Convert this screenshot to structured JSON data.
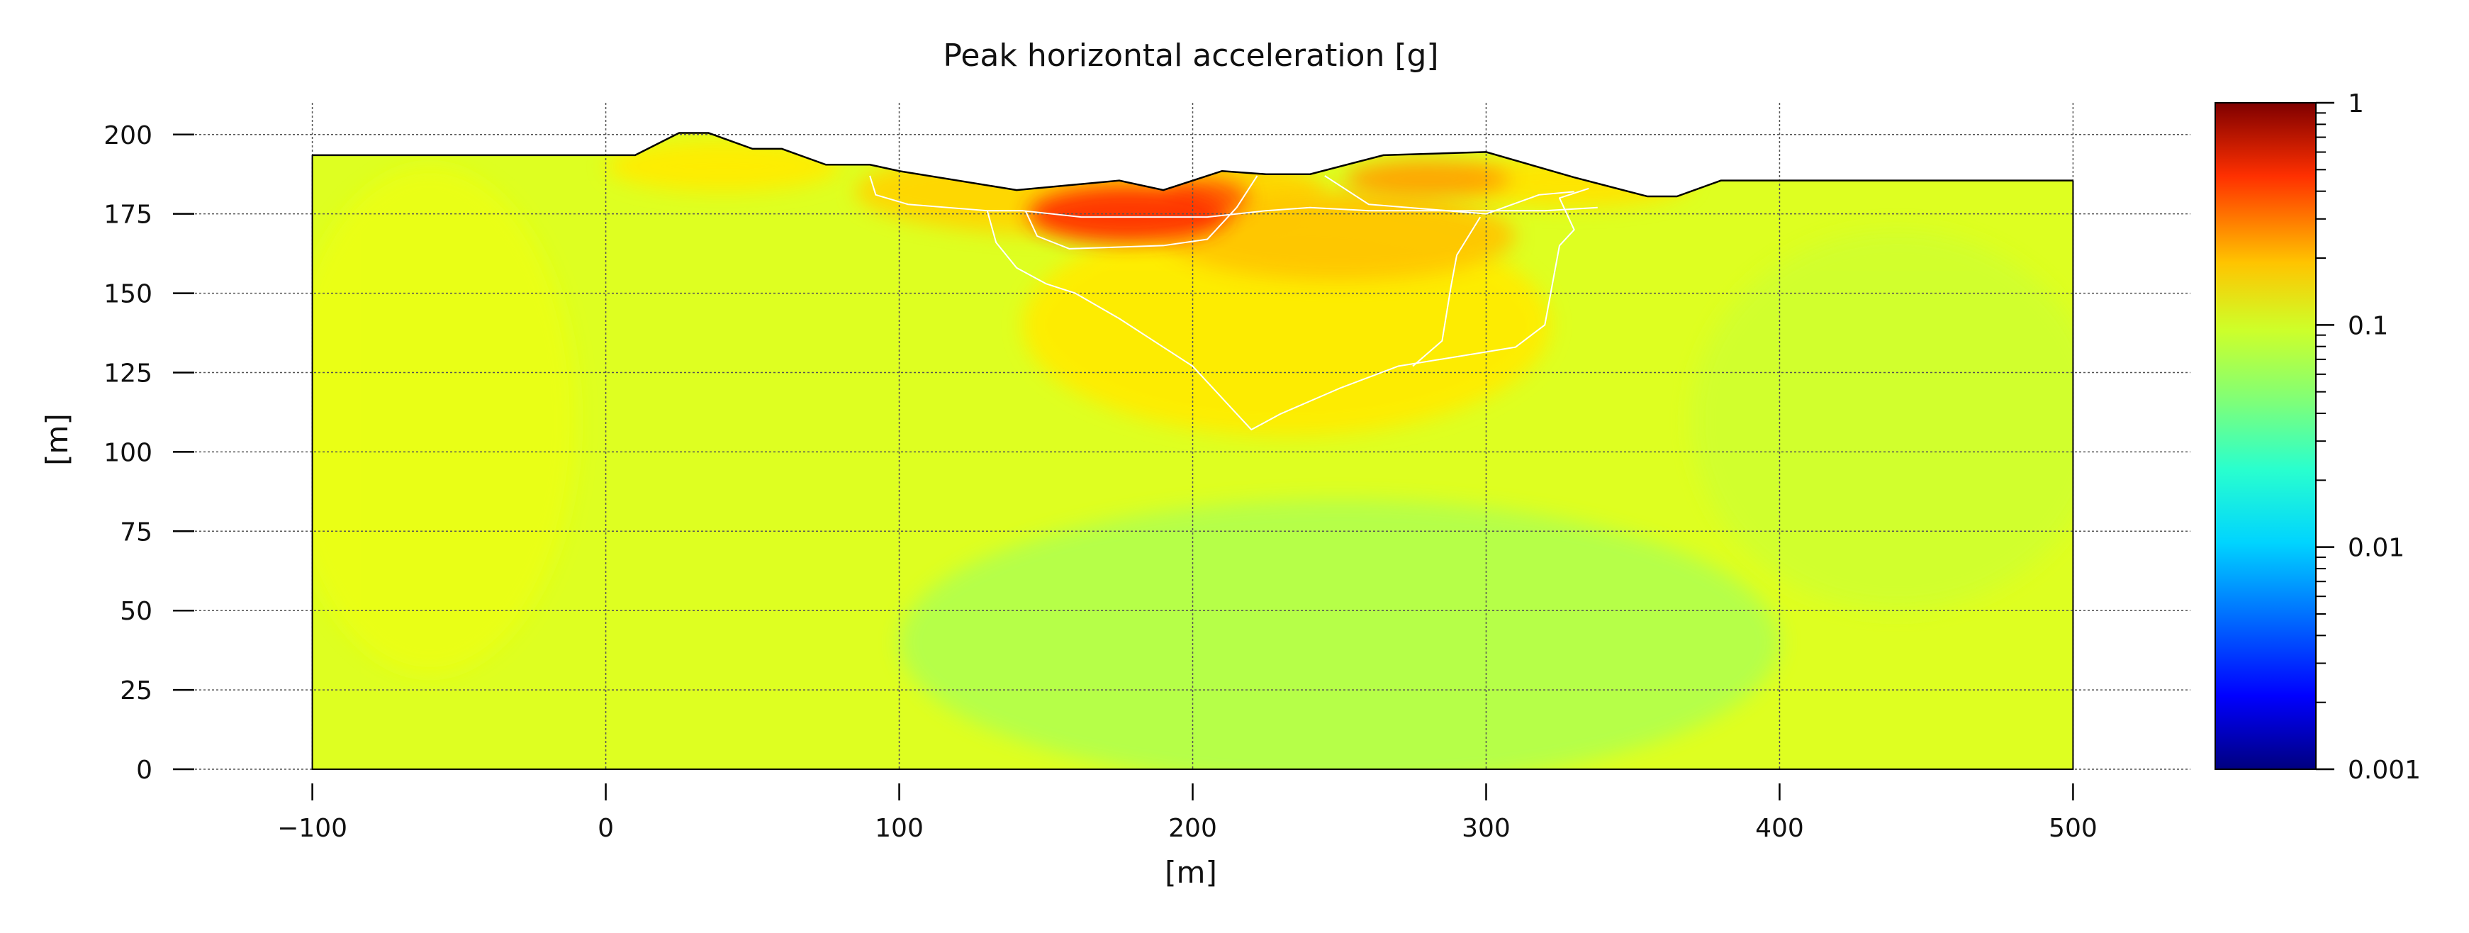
{
  "chart_data": {
    "type": "heatmap",
    "title": "Peak horizontal acceleration [g]",
    "xlabel": "[m]",
    "ylabel": "[m]",
    "xlim": [
      -140,
      540
    ],
    "ylim": [
      0,
      210
    ],
    "x_ticks": [
      -100,
      0,
      100,
      200,
      300,
      400,
      500
    ],
    "x_tick_labels": [
      "−100",
      "0",
      "100",
      "200",
      "300",
      "400",
      "500"
    ],
    "y_ticks": [
      0,
      25,
      50,
      75,
      100,
      125,
      150,
      175,
      200
    ],
    "y_tick_labels": [
      "0",
      "25",
      "50",
      "75",
      "100",
      "125",
      "150",
      "175",
      "200"
    ],
    "grid": true,
    "colorbar": {
      "scale": "log",
      "range": [
        0.001,
        1
      ],
      "colormap": "jet",
      "ticks": [
        0.001,
        0.01,
        0.1,
        1
      ],
      "tick_labels": [
        "0.001",
        "0.01",
        "0.1",
        "1"
      ]
    },
    "domain_bounds": {
      "x_min": -100,
      "x_max": 500,
      "y_min": 0
    },
    "surface_profile": [
      [
        -100,
        193.5
      ],
      [
        10,
        193.5
      ],
      [
        25,
        200.5
      ],
      [
        35,
        200.5
      ],
      [
        50,
        195.5
      ],
      [
        60,
        195.5
      ],
      [
        75,
        190.5
      ],
      [
        90,
        190.5
      ],
      [
        100,
        188.5
      ],
      [
        140,
        182.5
      ],
      [
        175,
        185.5
      ],
      [
        190,
        182.5
      ],
      [
        210,
        188.5
      ],
      [
        225,
        187.5
      ],
      [
        240,
        187.5
      ],
      [
        265,
        193.5
      ],
      [
        300,
        194.5
      ],
      [
        330,
        186.5
      ],
      [
        355,
        180.5
      ],
      [
        365,
        180.5
      ],
      [
        380,
        185.5
      ],
      [
        500,
        185.5
      ]
    ],
    "zone_boundaries": [
      [
        [
          90,
          187
        ],
        [
          92,
          181
        ],
        [
          103,
          178
        ],
        [
          130,
          176
        ],
        [
          142,
          176
        ],
        [
          162,
          174
        ],
        [
          205,
          174
        ],
        [
          225,
          176
        ],
        [
          240,
          177
        ],
        [
          260,
          176
        ],
        [
          320,
          176
        ],
        [
          338,
          177
        ]
      ],
      [
        [
          130,
          176
        ],
        [
          133,
          166
        ],
        [
          140,
          158
        ],
        [
          150,
          153
        ],
        [
          160,
          150
        ],
        [
          175,
          142
        ],
        [
          190,
          133
        ],
        [
          200,
          127
        ],
        [
          210,
          117
        ],
        [
          220,
          107
        ],
        [
          230,
          112
        ],
        [
          250,
          120
        ],
        [
          270,
          127
        ],
        [
          290,
          130
        ],
        [
          310,
          133
        ],
        [
          320,
          140
        ],
        [
          325,
          165
        ],
        [
          330,
          170
        ],
        [
          325,
          180
        ],
        [
          335,
          183
        ]
      ],
      [
        [
          143,
          176
        ],
        [
          147,
          168
        ],
        [
          158,
          164
        ],
        [
          190,
          165
        ],
        [
          205,
          167
        ],
        [
          215,
          177
        ],
        [
          222,
          187
        ]
      ],
      [
        [
          298,
          174
        ],
        [
          290,
          162
        ],
        [
          288,
          152
        ],
        [
          285,
          135
        ],
        [
          275,
          127
        ]
      ],
      [
        [
          245,
          187
        ],
        [
          260,
          178
        ],
        [
          300,
          175
        ],
        [
          318,
          181
        ],
        [
          330,
          182
        ]
      ]
    ],
    "pga_hotspots": [
      {
        "x": 178,
        "y": 175,
        "rx": 34,
        "ry": 9,
        "value": 0.3
      },
      {
        "x": 205,
        "y": 180,
        "rx": 14,
        "ry": 6,
        "value": 0.22
      },
      {
        "x": 280,
        "y": 186,
        "rx": 28,
        "ry": 6,
        "value": 0.14
      },
      {
        "x": 250,
        "y": 168,
        "rx": 60,
        "ry": 14,
        "value": 0.11
      },
      {
        "x": 232,
        "y": 140,
        "rx": 90,
        "ry": 35,
        "value": 0.085
      },
      {
        "x": 165,
        "y": 182,
        "rx": 80,
        "ry": 14,
        "value": 0.1
      },
      {
        "x": -60,
        "y": 110,
        "rx": 50,
        "ry": 80,
        "value": 0.065
      },
      {
        "x": 250,
        "y": 40,
        "rx": 150,
        "ry": 45,
        "value": 0.045
      },
      {
        "x": 440,
        "y": 110,
        "rx": 70,
        "ry": 60,
        "value": 0.055
      },
      {
        "x": 330,
        "y": 185,
        "rx": 40,
        "ry": 8,
        "value": 0.09
      },
      {
        "x": 40,
        "y": 190,
        "rx": 40,
        "ry": 8,
        "value": 0.085
      }
    ],
    "pga_background": 0.06
  }
}
